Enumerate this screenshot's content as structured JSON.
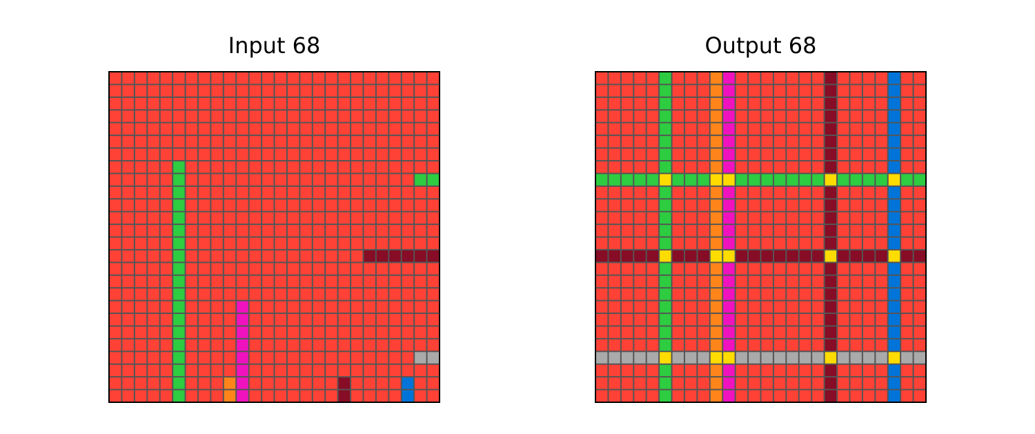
{
  "panels": [
    {
      "title": "Input 68",
      "rows": 26,
      "cols": 26,
      "background": 2,
      "cells": [
        {
          "color": 3,
          "col": 5,
          "rows": [
            7,
            25
          ]
        },
        {
          "color": 3,
          "row": 8,
          "cols": [
            24,
            25
          ]
        },
        {
          "color": 9,
          "row": 14,
          "cols": [
            20,
            25
          ]
        },
        {
          "color": 6,
          "col": 10,
          "rows": [
            18,
            25
          ]
        },
        {
          "color": 7,
          "col": 9,
          "rows": [
            24,
            25
          ]
        },
        {
          "color": 9,
          "col": 18,
          "rows": [
            24,
            25
          ]
        },
        {
          "color": 1,
          "col": 23,
          "rows": [
            24,
            25
          ]
        },
        {
          "color": 5,
          "row": 22,
          "cols": [
            24,
            25
          ]
        }
      ]
    },
    {
      "title": "Output 68",
      "rows": 26,
      "cols": 26,
      "background": 2,
      "col_lines": [
        {
          "index": 5,
          "color": 3
        },
        {
          "index": 9,
          "color": 7
        },
        {
          "index": 10,
          "color": 6
        },
        {
          "index": 18,
          "color": 9
        },
        {
          "index": 23,
          "color": 1
        }
      ],
      "row_lines": [
        {
          "index": 8,
          "color": 3
        },
        {
          "index": 14,
          "color": 9
        },
        {
          "index": 22,
          "color": 5
        }
      ],
      "intersection_color": 4
    }
  ],
  "palette": {
    "1": "#0074D9",
    "2": "#FF4136",
    "3": "#2ECC40",
    "4": "#FFDC00",
    "5": "#AAAAAA",
    "6": "#F012BE",
    "7": "#FF851B",
    "9": "#870C25"
  },
  "grid_line_color": "#555555"
}
